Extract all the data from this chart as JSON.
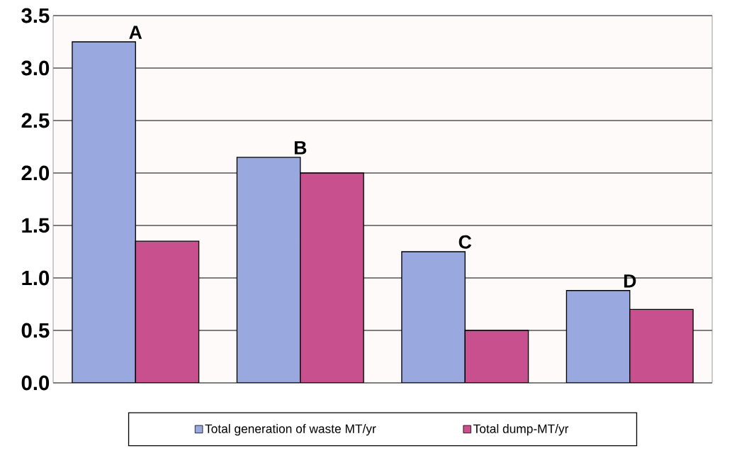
{
  "chart_data": {
    "type": "bar",
    "categories": [
      "A",
      "B",
      "C",
      "D"
    ],
    "series": [
      {
        "name": "Total generation of waste MT/yr",
        "color": "#9aa8e0",
        "values": [
          3.25,
          2.15,
          1.25,
          0.88
        ]
      },
      {
        "name": "Total dump-MT/yr",
        "color": "#c8508e",
        "values": [
          1.35,
          2.0,
          0.5,
          0.7
        ]
      }
    ],
    "ylim": [
      0,
      3.5
    ],
    "yticks": [
      {
        "value": 0,
        "label": "0.0"
      },
      0.5,
      {
        "value": 1,
        "label": "1.0"
      },
      1.5,
      {
        "value": 2,
        "label": "2.0"
      },
      2.5,
      {
        "value": 3,
        "label": "3.0"
      },
      3.5
    ],
    "grid": "y",
    "legend": "bottom"
  }
}
